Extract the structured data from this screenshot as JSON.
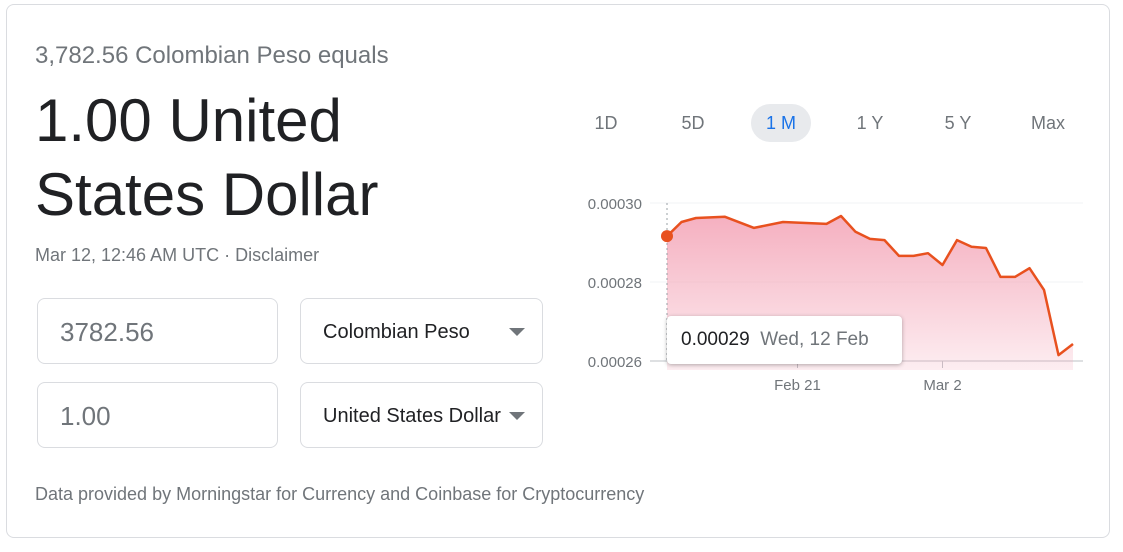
{
  "header": {
    "subtitle": "3,782.56 Colombian Peso equals",
    "result": "1.00 United States Dollar",
    "timestamp": "Mar 12, 12:46 AM UTC",
    "separator": "·",
    "disclaimer": "Disclaimer"
  },
  "converter": {
    "from_amount": "3782.56",
    "from_currency": "Colombian Peso",
    "to_amount": "1.00",
    "to_currency": "United States Dollar"
  },
  "ranges": [
    {
      "label": "1D"
    },
    {
      "label": "5D"
    },
    {
      "label": "1 M",
      "selected": true
    },
    {
      "label": "1 Y"
    },
    {
      "label": "5 Y"
    },
    {
      "label": "Max"
    }
  ],
  "footer": "Data provided by Morningstar for Currency and Coinbase for Cryptocurrency",
  "tooltip": {
    "value": "0.00029",
    "date": "Wed, 12 Feb"
  },
  "colors": {
    "line": "#e8511f",
    "fill": "#f4a7b9",
    "selected": "#1a73e8"
  },
  "chart_data": {
    "type": "area",
    "ylim": [
      0.00026,
      0.0003
    ],
    "yticks": [
      "0.00030",
      "0.00028",
      "0.00026"
    ],
    "xticks": [
      {
        "label": "Feb 21",
        "date": "2020-02-21"
      },
      {
        "label": "Mar 2",
        "date": "2020-03-02"
      }
    ],
    "x": [
      "2020-02-12",
      "2020-02-13",
      "2020-02-14",
      "2020-02-16",
      "2020-02-18",
      "2020-02-20",
      "2020-02-23",
      "2020-02-24",
      "2020-02-25",
      "2020-02-26",
      "2020-02-27",
      "2020-02-28",
      "2020-02-29",
      "2020-03-01",
      "2020-03-02",
      "2020-03-03",
      "2020-03-04",
      "2020-03-05",
      "2020-03-06",
      "2020-03-07",
      "2020-03-08",
      "2020-03-09",
      "2020-03-10",
      "2020-03-11"
    ],
    "values": [
      0.0002916,
      0.0002952,
      0.0002962,
      0.0002965,
      0.0002937,
      0.0002952,
      0.0002947,
      0.0002967,
      0.0002927,
      0.0002909,
      0.0002906,
      0.0002866,
      0.0002866,
      0.0002873,
      0.0002843,
      0.0002906,
      0.0002889,
      0.0002886,
      0.0002813,
      0.0002813,
      0.0002835,
      0.000278,
      0.0002615,
      0.0002643
    ],
    "grid": true,
    "highlight": {
      "date": "2020-02-12",
      "value": "0.00029"
    }
  }
}
